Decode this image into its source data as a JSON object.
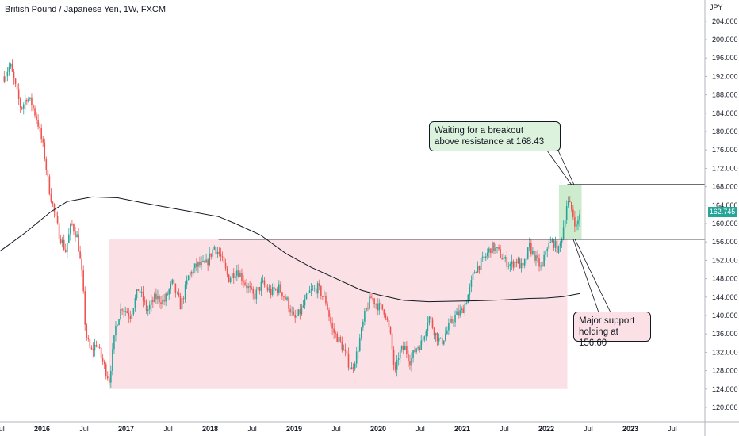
{
  "header": {
    "title": "British Pound / Japanese Yen, 1W, FXCM"
  },
  "axis": {
    "currency": "JPY",
    "current_price": "162.745"
  },
  "annotations": {
    "breakout_note_line1": "Waiting for a breakout",
    "breakout_note_line2": "above resistance at 168.43",
    "support_note_line1": "Major support",
    "support_note_line2": "holding at 156.60"
  },
  "colors": {
    "up": "#26a69a",
    "down": "#ef5350",
    "range_zone": "#fbe1e6",
    "breakout_zone": "#cdebcd",
    "moving_average": "#131722"
  },
  "chart_data": {
    "type": "candlestick",
    "title": "British Pound / Japanese Yen, 1W, FXCM",
    "ylabel": "JPY",
    "ylim": [
      118,
      208
    ],
    "y_ticks": [
      "120.000",
      "124.000",
      "128.000",
      "132.000",
      "136.000",
      "140.000",
      "144.000",
      "148.000",
      "152.000",
      "156.000",
      "160.000",
      "164.000",
      "168.000",
      "172.000",
      "176.000",
      "180.000",
      "184.000",
      "188.000",
      "192.000",
      "196.000",
      "200.000",
      "204.000"
    ],
    "x_ticks": [
      {
        "label": "Jul",
        "t": 2015.5,
        "bold": false
      },
      {
        "label": "2016",
        "t": 2016.0,
        "bold": true
      },
      {
        "label": "Jul",
        "t": 2016.5,
        "bold": false
      },
      {
        "label": "2017",
        "t": 2017.0,
        "bold": true
      },
      {
        "label": "Jul",
        "t": 2017.5,
        "bold": false
      },
      {
        "label": "2018",
        "t": 2018.0,
        "bold": true
      },
      {
        "label": "Jul",
        "t": 2018.5,
        "bold": false
      },
      {
        "label": "2019",
        "t": 2019.0,
        "bold": true
      },
      {
        "label": "Jul",
        "t": 2019.5,
        "bold": false
      },
      {
        "label": "2020",
        "t": 2020.0,
        "bold": true
      },
      {
        "label": "Jul",
        "t": 2020.5,
        "bold": false
      },
      {
        "label": "2021",
        "t": 2021.0,
        "bold": true
      },
      {
        "label": "Jul",
        "t": 2021.5,
        "bold": false
      },
      {
        "label": "2022",
        "t": 2022.0,
        "bold": true
      },
      {
        "label": "Jul",
        "t": 2022.5,
        "bold": false
      },
      {
        "label": "2023",
        "t": 2023.0,
        "bold": true
      },
      {
        "label": "Jul",
        "t": 2023.5,
        "bold": false
      }
    ],
    "price_path": [
      [
        2015.55,
        192.0
      ],
      [
        2015.62,
        194.5
      ],
      [
        2015.68,
        190.0
      ],
      [
        2015.75,
        185.0
      ],
      [
        2015.82,
        187.5
      ],
      [
        2015.88,
        186.0
      ],
      [
        2015.95,
        182.0
      ],
      [
        2016.02,
        176.0
      ],
      [
        2016.08,
        168.0
      ],
      [
        2016.15,
        162.0
      ],
      [
        2016.2,
        158.0
      ],
      [
        2016.28,
        154.0
      ],
      [
        2016.35,
        160.0
      ],
      [
        2016.42,
        157.0
      ],
      [
        2016.48,
        148.0
      ],
      [
        2016.52,
        136.0
      ],
      [
        2016.58,
        132.0
      ],
      [
        2016.65,
        134.0
      ],
      [
        2016.72,
        130.0
      ],
      [
        2016.8,
        126.0
      ],
      [
        2016.88,
        138.0
      ],
      [
        2016.95,
        142.0
      ],
      [
        2017.05,
        140.0
      ],
      [
        2017.15,
        146.0
      ],
      [
        2017.25,
        141.0
      ],
      [
        2017.35,
        144.0
      ],
      [
        2017.45,
        143.0
      ],
      [
        2017.55,
        147.0
      ],
      [
        2017.65,
        142.0
      ],
      [
        2017.75,
        149.0
      ],
      [
        2017.85,
        151.0
      ],
      [
        2017.95,
        151.0
      ],
      [
        2018.05,
        155.0
      ],
      [
        2018.12,
        153.0
      ],
      [
        2018.22,
        148.0
      ],
      [
        2018.32,
        150.0
      ],
      [
        2018.42,
        147.0
      ],
      [
        2018.52,
        144.0
      ],
      [
        2018.62,
        147.0
      ],
      [
        2018.72,
        145.0
      ],
      [
        2018.82,
        146.0
      ],
      [
        2018.92,
        143.0
      ],
      [
        2019.0,
        139.0
      ],
      [
        2019.08,
        141.0
      ],
      [
        2019.18,
        145.0
      ],
      [
        2019.28,
        146.0
      ],
      [
        2019.38,
        143.0
      ],
      [
        2019.45,
        137.0
      ],
      [
        2019.55,
        134.0
      ],
      [
        2019.62,
        131.0
      ],
      [
        2019.68,
        128.0
      ],
      [
        2019.75,
        132.0
      ],
      [
        2019.85,
        141.0
      ],
      [
        2019.92,
        144.0
      ],
      [
        2020.0,
        142.0
      ],
      [
        2020.08,
        141.0
      ],
      [
        2020.15,
        135.0
      ],
      [
        2020.2,
        127.0
      ],
      [
        2020.25,
        132.0
      ],
      [
        2020.32,
        133.0
      ],
      [
        2020.38,
        130.0
      ],
      [
        2020.45,
        133.0
      ],
      [
        2020.52,
        134.0
      ],
      [
        2020.6,
        140.0
      ],
      [
        2020.68,
        136.0
      ],
      [
        2020.75,
        134.0
      ],
      [
        2020.85,
        138.0
      ],
      [
        2020.92,
        140.0
      ],
      [
        2021.0,
        141.0
      ],
      [
        2021.08,
        145.0
      ],
      [
        2021.15,
        150.0
      ],
      [
        2021.25,
        152.0
      ],
      [
        2021.35,
        155.0
      ],
      [
        2021.42,
        154.0
      ],
      [
        2021.5,
        152.0
      ],
      [
        2021.58,
        151.0
      ],
      [
        2021.65,
        152.0
      ],
      [
        2021.72,
        150.0
      ],
      [
        2021.8,
        155.0
      ],
      [
        2021.88,
        152.0
      ],
      [
        2021.95,
        150.0
      ],
      [
        2022.0,
        155.0
      ],
      [
        2022.08,
        156.0
      ],
      [
        2022.15,
        154.0
      ],
      [
        2022.2,
        159.0
      ],
      [
        2022.25,
        165.0
      ],
      [
        2022.3,
        163.0
      ],
      [
        2022.36,
        159.0
      ],
      [
        2022.4,
        162.745
      ]
    ],
    "moving_average": [
      [
        2015.5,
        154.0
      ],
      [
        2015.8,
        158.0
      ],
      [
        2016.1,
        162.5
      ],
      [
        2016.3,
        164.8
      ],
      [
        2016.6,
        165.8
      ],
      [
        2016.9,
        165.6
      ],
      [
        2017.2,
        164.5
      ],
      [
        2017.5,
        163.5
      ],
      [
        2017.8,
        162.5
      ],
      [
        2018.1,
        161.5
      ],
      [
        2018.3,
        160.0
      ],
      [
        2018.6,
        157.5
      ],
      [
        2018.9,
        153.5
      ],
      [
        2019.2,
        150.5
      ],
      [
        2019.5,
        148.0
      ],
      [
        2019.8,
        145.5
      ],
      [
        2020.0,
        144.5
      ],
      [
        2020.3,
        143.3
      ],
      [
        2020.6,
        143.0
      ],
      [
        2020.9,
        143.1
      ],
      [
        2021.2,
        143.2
      ],
      [
        2021.5,
        143.4
      ],
      [
        2021.8,
        143.7
      ],
      [
        2022.0,
        143.8
      ],
      [
        2022.2,
        144.1
      ],
      [
        2022.4,
        144.8
      ]
    ],
    "range_zone": {
      "t_start": 2016.8,
      "t_end": 2022.25,
      "low": 124.0,
      "high": 156.6
    },
    "breakout_zone": {
      "t_start": 2022.15,
      "t_end": 2022.42,
      "low": 156.6,
      "high": 168.43
    },
    "resistance": {
      "value": 168.43,
      "t_start": 2022.25
    },
    "support": {
      "value": 156.6,
      "t_start": 2018.1
    },
    "last_price": 162.745
  }
}
